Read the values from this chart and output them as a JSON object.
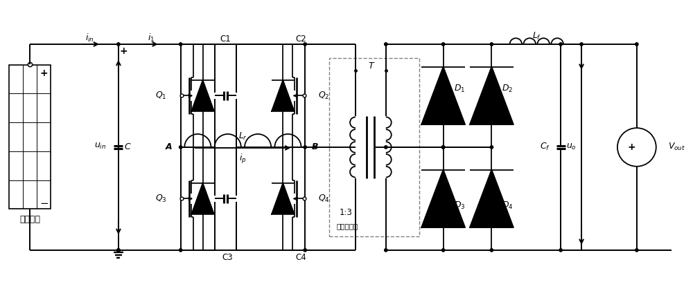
{
  "fig_w": 10.0,
  "fig_h": 4.08,
  "dpi": 100,
  "xlim": [
    0,
    100
  ],
  "ylim": [
    0,
    40.8
  ],
  "ytop": 34.5,
  "ybot": 4.5,
  "lw": 1.4,
  "pv_label": "光伏电池",
  "trafo_label": "高频变压器",
  "trafo_ratio": "1:3"
}
